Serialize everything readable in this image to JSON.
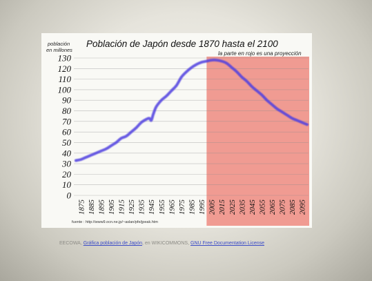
{
  "chart_data": {
    "type": "line",
    "title": "Población de Japón desde 1870 hasta el 2100",
    "subtitle": "la parte en rojo es una proyección",
    "ylabel_line1": "población",
    "ylabel_line2": "en millones",
    "xlabel": "",
    "ylim": [
      0,
      130
    ],
    "xlim": [
      1870,
      2100
    ],
    "yticks": [
      "0",
      "10",
      "20",
      "30",
      "40",
      "50",
      "60",
      "70",
      "80",
      "90",
      "100",
      "110",
      "120",
      "130"
    ],
    "xticks": [
      "1875",
      "1885",
      "1895",
      "1905",
      "1915",
      "1925",
      "1935",
      "1945",
      "1955",
      "1965",
      "1975",
      "1985",
      "1995",
      "2005",
      "2015",
      "2025",
      "2035",
      "2045",
      "2055",
      "2065",
      "2075",
      "2085",
      "2095"
    ],
    "projection_start": 2000,
    "projection_end": 2100,
    "projection_color": "#ef8b80",
    "line_color": "#5040e0",
    "grid": "horizontal",
    "source": "fuente : http://www9.ocn.ne.jp/~aslan/pfe/jpeak.htm",
    "series": [
      {
        "x": [
          1870,
          1875,
          1880,
          1885,
          1890,
          1895,
          1900,
          1905,
          1910,
          1915,
          1920,
          1925,
          1930,
          1935,
          1940,
          1943,
          1945,
          1947,
          1950,
          1955,
          1960,
          1965,
          1970,
          1975,
          1980,
          1985,
          1990,
          1995,
          2000,
          2005,
          2010,
          2015,
          2020,
          2025,
          2030,
          2035,
          2040,
          2045,
          2050,
          2055,
          2060,
          2065,
          2070,
          2075,
          2080,
          2085,
          2090,
          2095,
          2100
        ],
        "y": [
          33,
          34,
          36,
          38,
          40,
          42,
          44,
          47,
          50,
          54,
          56,
          60,
          64,
          69,
          72,
          73,
          71,
          77,
          84,
          90,
          94,
          99,
          104,
          112,
          117,
          121,
          124,
          126,
          127,
          128,
          128,
          127,
          125,
          121,
          117,
          112,
          108,
          103,
          99,
          95,
          90,
          86,
          82,
          79,
          76,
          73,
          71,
          69,
          67
        ]
      }
    ]
  },
  "caption": {
    "prefix": "EECOWA, ",
    "link1": "Gráfica población de Japón",
    "middle": ", en WIKICOMMONS, ",
    "link2": "GNU Free Documentation License"
  }
}
